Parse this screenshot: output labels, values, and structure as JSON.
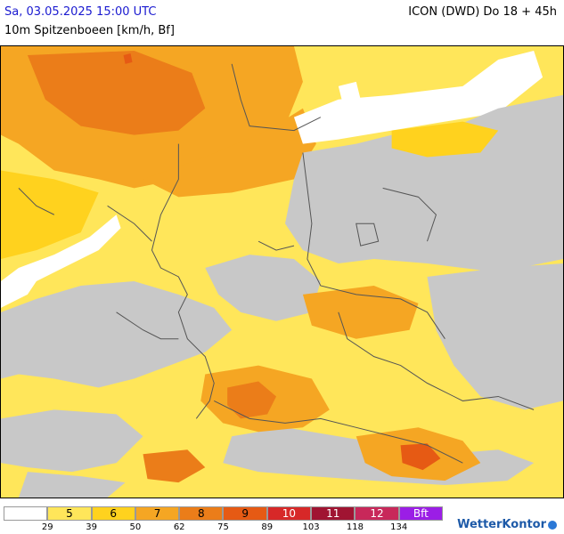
{
  "header": {
    "date": "Sa, 03.05.2025 15:00 UTC",
    "parameter": "10m Spitzenboeen [km/h, Bf]",
    "model": "ICON (DWD) Do 18 + 45h"
  },
  "legend": {
    "cells": [
      {
        "label": "",
        "color": "#ffffff",
        "dark": false
      },
      {
        "label": "5",
        "color": "#ffe65a",
        "dark": false
      },
      {
        "label": "6",
        "color": "#ffd21e",
        "dark": false
      },
      {
        "label": "7",
        "color": "#f5a623",
        "dark": false
      },
      {
        "label": "8",
        "color": "#eb7d19",
        "dark": false
      },
      {
        "label": "9",
        "color": "#e65a14",
        "dark": false
      },
      {
        "label": "10",
        "color": "#d72828",
        "dark": true
      },
      {
        "label": "11",
        "color": "#a01432",
        "dark": true
      },
      {
        "label": "12",
        "color": "#c8285a",
        "dark": true
      },
      {
        "label": "Bft",
        "color": "#9b1ee6",
        "dark": true
      }
    ],
    "ticks": [
      "29",
      "39",
      "50",
      "62",
      "75",
      "89",
      "103",
      "118",
      "134"
    ]
  },
  "branding": {
    "logo_text": "WetterKontor"
  },
  "colors": {
    "no_data_gray": "#c8c8c8",
    "border_line": "#555555"
  }
}
